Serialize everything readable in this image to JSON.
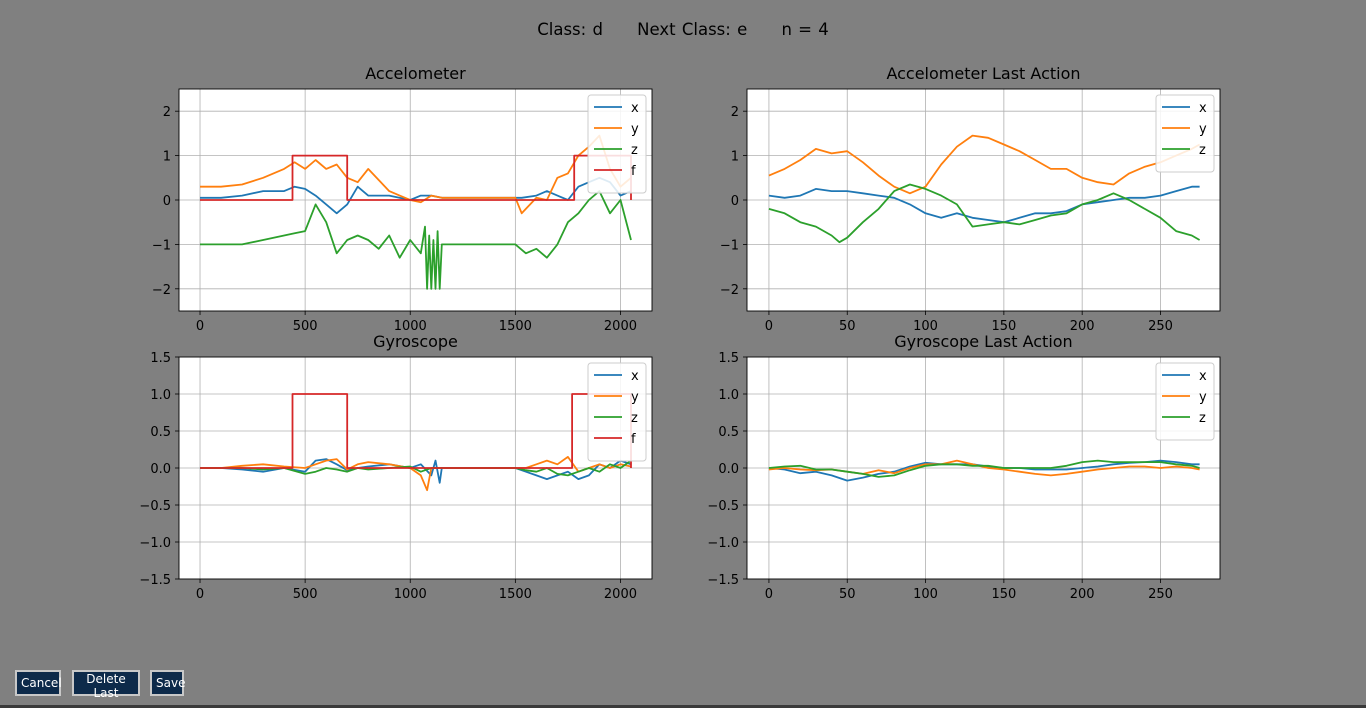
{
  "header": {
    "class_label": "Class: d",
    "next_class_label": "Next Class: e",
    "count_label": "n = 4"
  },
  "buttons": {
    "cancel": "Cancel",
    "delete_last": "Delete Last",
    "save": "Save"
  },
  "colors": {
    "x": "#1f77b4",
    "y": "#ff7f0e",
    "z": "#2ca02c",
    "f": "#d62728"
  },
  "chart_data": [
    {
      "type": "line",
      "title": "Accelometer",
      "xlim": [
        -100,
        2150
      ],
      "ylim": [
        -2.5,
        2.5
      ],
      "xticks": [
        0,
        500,
        1000,
        1500,
        2000
      ],
      "yticks": [
        -2,
        -1,
        0,
        1,
        2
      ],
      "grid": true,
      "legend": "top-right",
      "series": [
        {
          "name": "x",
          "x": [
            0,
            100,
            200,
            300,
            400,
            450,
            500,
            550,
            600,
            650,
            700,
            750,
            800,
            900,
            1000,
            1050,
            1100,
            1150,
            1200,
            1300,
            1400,
            1500,
            1530,
            1600,
            1650,
            1700,
            1750,
            1800,
            1850,
            1900,
            1950,
            2000,
            2050
          ],
          "y": [
            0.05,
            0.05,
            0.1,
            0.2,
            0.2,
            0.3,
            0.25,
            0.1,
            -0.1,
            -0.3,
            -0.1,
            0.3,
            0.1,
            0.1,
            0,
            0.1,
            0.1,
            0.05,
            0.05,
            0.05,
            0.05,
            0.05,
            0.05,
            0.1,
            0.2,
            0.1,
            0,
            0.3,
            0.4,
            0.5,
            0.4,
            0.1,
            0.2
          ]
        },
        {
          "name": "y",
          "x": [
            0,
            100,
            200,
            300,
            400,
            450,
            500,
            550,
            600,
            650,
            700,
            750,
            800,
            850,
            900,
            950,
            1000,
            1050,
            1100,
            1150,
            1200,
            1300,
            1400,
            1500,
            1530,
            1600,
            1650,
            1700,
            1750,
            1800,
            1850,
            1900,
            1950,
            2000,
            2050
          ],
          "y": [
            0.3,
            0.3,
            0.35,
            0.5,
            0.7,
            0.85,
            0.7,
            0.9,
            0.7,
            0.8,
            0.5,
            0.4,
            0.7,
            0.45,
            0.2,
            0.1,
            0,
            -0.05,
            0.1,
            0.05,
            0.05,
            0.05,
            0.05,
            0.05,
            -0.3,
            0.05,
            0,
            0.5,
            0.6,
            1.0,
            1.2,
            1.45,
            0.7,
            0.3,
            0.5
          ]
        },
        {
          "name": "z",
          "x": [
            0,
            100,
            200,
            300,
            400,
            450,
            500,
            550,
            600,
            650,
            700,
            750,
            800,
            850,
            900,
            950,
            1000,
            1050,
            1070,
            1080,
            1090,
            1100,
            1110,
            1120,
            1130,
            1140,
            1150,
            1200,
            1300,
            1400,
            1500,
            1550,
            1600,
            1650,
            1700,
            1750,
            1800,
            1850,
            1900,
            1950,
            2000,
            2050
          ],
          "y": [
            -1,
            -1,
            -1,
            -0.9,
            -0.8,
            -0.75,
            -0.7,
            -0.1,
            -0.5,
            -1.2,
            -0.9,
            -0.8,
            -0.9,
            -1.1,
            -0.8,
            -1.3,
            -0.9,
            -1.2,
            -0.6,
            -2,
            -0.8,
            -2,
            -0.9,
            -2,
            -0.7,
            -2,
            -1,
            -1,
            -1,
            -1,
            -1,
            -1.2,
            -1.1,
            -1.3,
            -1.0,
            -0.5,
            -0.3,
            0,
            0.2,
            -0.3,
            0,
            -0.9
          ]
        },
        {
          "name": "f",
          "x": [
            0,
            440,
            440,
            700,
            700,
            1780,
            1780,
            2050,
            2050
          ],
          "y": [
            0,
            0,
            1,
            1,
            0,
            0,
            1,
            1,
            0
          ]
        }
      ]
    },
    {
      "type": "line",
      "title": "Accelometer Last Action",
      "xlim": [
        -14,
        288
      ],
      "ylim": [
        -2.5,
        2.5
      ],
      "xticks": [
        0,
        50,
        100,
        150,
        200,
        250
      ],
      "yticks": [
        -2,
        -1,
        0,
        1,
        2
      ],
      "grid": true,
      "legend": "top-right",
      "series": [
        {
          "name": "x",
          "x": [
            0,
            10,
            20,
            30,
            40,
            50,
            60,
            70,
            80,
            90,
            100,
            110,
            120,
            130,
            140,
            150,
            160,
            170,
            180,
            190,
            200,
            210,
            220,
            230,
            240,
            250,
            260,
            270,
            275
          ],
          "y": [
            0.1,
            0.05,
            0.1,
            0.25,
            0.2,
            0.2,
            0.15,
            0.1,
            0.05,
            -0.1,
            -0.3,
            -0.4,
            -0.3,
            -0.4,
            -0.45,
            -0.5,
            -0.4,
            -0.3,
            -0.3,
            -0.25,
            -0.1,
            -0.05,
            0,
            0.05,
            0.05,
            0.1,
            0.2,
            0.3,
            0.3
          ]
        },
        {
          "name": "y",
          "x": [
            0,
            10,
            20,
            30,
            40,
            50,
            60,
            70,
            80,
            90,
            100,
            110,
            120,
            130,
            140,
            150,
            160,
            170,
            180,
            190,
            200,
            210,
            220,
            230,
            240,
            250,
            260,
            270,
            275
          ],
          "y": [
            0.55,
            0.7,
            0.9,
            1.15,
            1.05,
            1.1,
            0.85,
            0.55,
            0.3,
            0.15,
            0.3,
            0.8,
            1.2,
            1.45,
            1.4,
            1.25,
            1.1,
            0.9,
            0.7,
            0.7,
            0.5,
            0.4,
            0.35,
            0.6,
            0.75,
            0.85,
            1.0,
            1.15,
            1.25
          ]
        },
        {
          "name": "z",
          "x": [
            0,
            10,
            20,
            30,
            40,
            45,
            50,
            60,
            70,
            80,
            90,
            100,
            110,
            120,
            130,
            140,
            150,
            160,
            170,
            180,
            190,
            200,
            210,
            220,
            230,
            240,
            250,
            260,
            270,
            275
          ],
          "y": [
            -0.2,
            -0.3,
            -0.5,
            -0.6,
            -0.8,
            -0.95,
            -0.85,
            -0.5,
            -0.2,
            0.2,
            0.35,
            0.25,
            0.1,
            -0.1,
            -0.6,
            -0.55,
            -0.5,
            -0.55,
            -0.45,
            -0.35,
            -0.3,
            -0.1,
            0,
            0.15,
            0,
            -0.2,
            -0.4,
            -0.7,
            -0.8,
            -0.9
          ]
        }
      ]
    },
    {
      "type": "line",
      "title": "Gyroscope",
      "xlim": [
        -100,
        2150
      ],
      "ylim": [
        -1.5,
        1.5
      ],
      "xticks": [
        0,
        500,
        1000,
        1500,
        2000
      ],
      "yticks": [
        -1.5,
        -1.0,
        -0.5,
        0.0,
        0.5,
        1.0,
        1.5
      ],
      "ytick_labels": [
        "−1.5",
        "−1.0",
        "−0.5",
        "0.0",
        "0.5",
        "1.0",
        "1.5"
      ],
      "grid": true,
      "legend": "top-right",
      "series": [
        {
          "name": "x",
          "x": [
            0,
            100,
            200,
            300,
            400,
            500,
            550,
            600,
            650,
            700,
            750,
            800,
            900,
            1000,
            1050,
            1100,
            1120,
            1140,
            1150,
            1200,
            1300,
            1400,
            1500,
            1550,
            1600,
            1650,
            1700,
            1750,
            1800,
            1850,
            1900,
            1950,
            2000,
            2050
          ],
          "y": [
            0,
            0,
            -0.02,
            -0.05,
            0,
            -0.05,
            0.1,
            0.12,
            0.05,
            -0.03,
            0,
            0.02,
            0.05,
            0,
            0.05,
            -0.1,
            0.1,
            -0.2,
            0,
            0,
            0,
            0,
            0,
            -0.05,
            -0.1,
            -0.15,
            -0.1,
            -0.05,
            -0.15,
            -0.1,
            0.05,
            0,
            0.1,
            0.05
          ]
        },
        {
          "name": "y",
          "x": [
            0,
            100,
            200,
            300,
            400,
            500,
            550,
            600,
            650,
            700,
            750,
            800,
            900,
            1000,
            1050,
            1080,
            1100,
            1150,
            1200,
            1300,
            1400,
            1500,
            1550,
            1600,
            1650,
            1700,
            1750,
            1800,
            1850,
            1900,
            1950,
            2000,
            2050
          ],
          "y": [
            0,
            0,
            0.03,
            0.05,
            0.02,
            0,
            0.05,
            0.1,
            0.12,
            -0.02,
            0.05,
            0.08,
            0.05,
            0,
            -0.1,
            -0.3,
            0,
            0,
            0,
            0,
            0,
            0,
            0,
            0.05,
            0.1,
            0.05,
            0.15,
            -0.05,
            0,
            0.05,
            0,
            0.05,
            0.02
          ]
        },
        {
          "name": "z",
          "x": [
            0,
            100,
            200,
            300,
            400,
            500,
            550,
            600,
            650,
            700,
            750,
            800,
            900,
            1000,
            1050,
            1100,
            1150,
            1200,
            1300,
            1400,
            1500,
            1550,
            1600,
            1650,
            1700,
            1750,
            1800,
            1850,
            1900,
            1950,
            2000,
            2050
          ],
          "y": [
            0,
            0,
            0,
            -0.02,
            0,
            -0.08,
            -0.05,
            0,
            -0.02,
            -0.05,
            0,
            -0.02,
            0,
            0.02,
            -0.05,
            0,
            0,
            0,
            0,
            0,
            0,
            -0.03,
            -0.05,
            0,
            -0.08,
            -0.1,
            -0.05,
            0,
            -0.05,
            0.05,
            0,
            0.1
          ]
        },
        {
          "name": "f",
          "x": [
            0,
            440,
            440,
            700,
            700,
            1770,
            1770,
            2050,
            2050
          ],
          "y": [
            0,
            0,
            1,
            1,
            0,
            0,
            1,
            1,
            0
          ]
        }
      ]
    },
    {
      "type": "line",
      "title": "Gyroscope Last Action",
      "xlim": [
        -14,
        288
      ],
      "ylim": [
        -1.5,
        1.5
      ],
      "xticks": [
        0,
        50,
        100,
        150,
        200,
        250
      ],
      "yticks": [
        -1.5,
        -1.0,
        -0.5,
        0.0,
        0.5,
        1.0,
        1.5
      ],
      "ytick_labels": [
        "−1.5",
        "−1.0",
        "−0.5",
        "0.0",
        "0.5",
        "1.0",
        "1.5"
      ],
      "grid": true,
      "legend": "top-right",
      "series": [
        {
          "name": "x",
          "x": [
            0,
            10,
            20,
            30,
            40,
            50,
            60,
            70,
            80,
            90,
            100,
            110,
            120,
            130,
            140,
            150,
            160,
            170,
            180,
            190,
            200,
            210,
            220,
            230,
            240,
            250,
            260,
            270,
            275
          ],
          "y": [
            0,
            -0.02,
            -0.07,
            -0.05,
            -0.1,
            -0.17,
            -0.13,
            -0.08,
            -0.05,
            0.02,
            0.07,
            0.05,
            0.05,
            0.05,
            0.02,
            0,
            0,
            -0.02,
            -0.02,
            -0.02,
            0,
            0.02,
            0.05,
            0.07,
            0.08,
            0.1,
            0.08,
            0.05,
            0.05
          ]
        },
        {
          "name": "y",
          "x": [
            0,
            10,
            20,
            30,
            40,
            50,
            60,
            70,
            80,
            90,
            100,
            110,
            120,
            130,
            140,
            150,
            160,
            170,
            180,
            190,
            200,
            210,
            220,
            230,
            240,
            250,
            260,
            270,
            275
          ],
          "y": [
            -0.02,
            0,
            -0.02,
            -0.03,
            -0.02,
            -0.05,
            -0.08,
            -0.03,
            -0.07,
            0,
            0.05,
            0.05,
            0.1,
            0.05,
            0,
            -0.02,
            -0.05,
            -0.08,
            -0.1,
            -0.08,
            -0.05,
            -0.02,
            0,
            0.02,
            0.02,
            0,
            0.02,
            0,
            -0.02
          ]
        },
        {
          "name": "z",
          "x": [
            0,
            10,
            20,
            30,
            40,
            50,
            60,
            70,
            80,
            90,
            100,
            110,
            120,
            130,
            140,
            150,
            160,
            170,
            180,
            190,
            200,
            210,
            220,
            230,
            240,
            250,
            260,
            270,
            275
          ],
          "y": [
            0,
            0.02,
            0.03,
            -0.02,
            -0.02,
            -0.05,
            -0.08,
            -0.12,
            -0.1,
            -0.03,
            0.03,
            0.05,
            0.05,
            0.03,
            0.03,
            0,
            0,
            0,
            0,
            0.03,
            0.08,
            0.1,
            0.08,
            0.08,
            0.08,
            0.08,
            0.05,
            0.03,
            0
          ]
        }
      ]
    }
  ]
}
